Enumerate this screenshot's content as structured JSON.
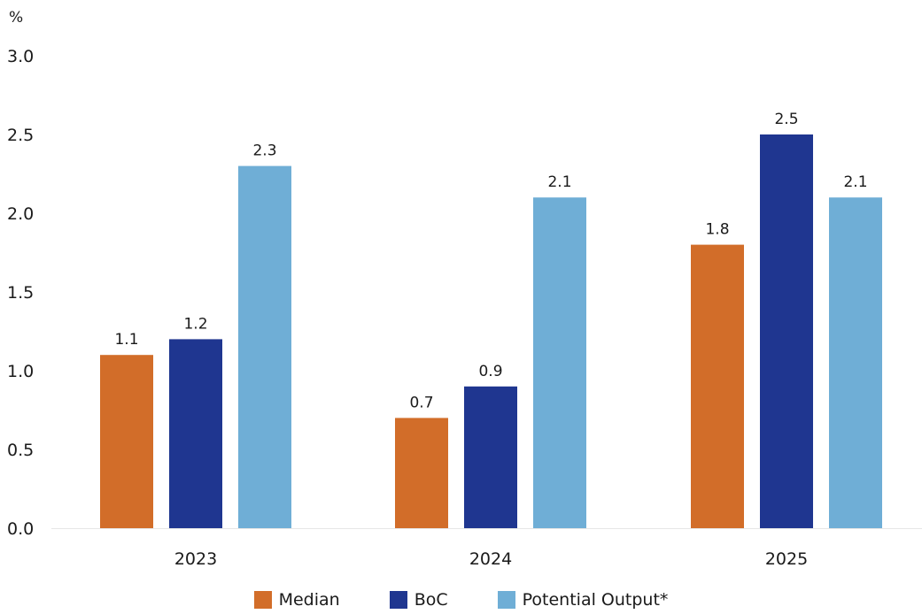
{
  "chart_data": {
    "type": "bar",
    "unit_label": "%",
    "categories": [
      "2023",
      "2024",
      "2025"
    ],
    "series": [
      {
        "name": "Median",
        "values": [
          1.1,
          0.7,
          1.8
        ],
        "color": "#d26d29"
      },
      {
        "name": "BoC",
        "values": [
          1.2,
          0.9,
          2.5
        ],
        "color": "#1f3690"
      },
      {
        "name": "Potential Output*",
        "values": [
          2.3,
          2.1,
          2.1
        ],
        "color": "#6faed6"
      }
    ],
    "ylim": [
      0,
      3.0
    ],
    "yticks": [
      "0.0",
      "0.5",
      "1.0",
      "1.5",
      "2.0",
      "2.5",
      "3.0"
    ],
    "data_labels": [
      [
        "1.1",
        "0.7",
        "1.8"
      ],
      [
        "1.2",
        "0.9",
        "2.5"
      ],
      [
        "2.3",
        "2.1",
        "2.1"
      ]
    ],
    "legend_position": "bottom",
    "grid": false
  }
}
